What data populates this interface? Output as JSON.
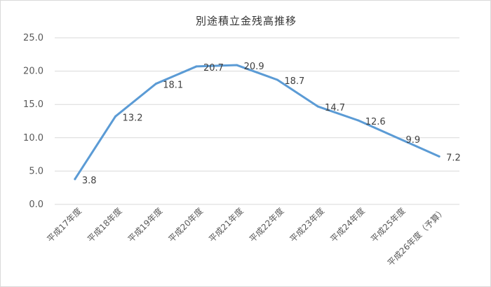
{
  "chart_data": {
    "type": "line",
    "title": "別途積立金残高推移",
    "categories": [
      "平成17年度",
      "平成18年度",
      "平成19年度",
      "平成20年度",
      "平成21年度",
      "平成22年度",
      "平成23年度",
      "平成24年度",
      "平成25年度",
      "平成26年度（予算）"
    ],
    "series": [
      {
        "values": [
          3.8,
          13.2,
          18.1,
          20.7,
          20.9,
          18.7,
          14.7,
          12.6,
          9.9,
          7.2
        ],
        "color": "#5b9bd5"
      }
    ],
    "data_labels": [
      "3.8",
      "13.2",
      "18.1",
      "20.7",
      "20.9",
      "18.7",
      "14.7",
      "12.6",
      "9.9",
      "7.2"
    ],
    "yticks": [
      "0.0",
      "5.0",
      "10.0",
      "15.0",
      "20.0",
      "25.0"
    ],
    "ylim": [
      0,
      25
    ],
    "xlabel": "",
    "ylabel": "",
    "grid": true,
    "legend": "none"
  }
}
